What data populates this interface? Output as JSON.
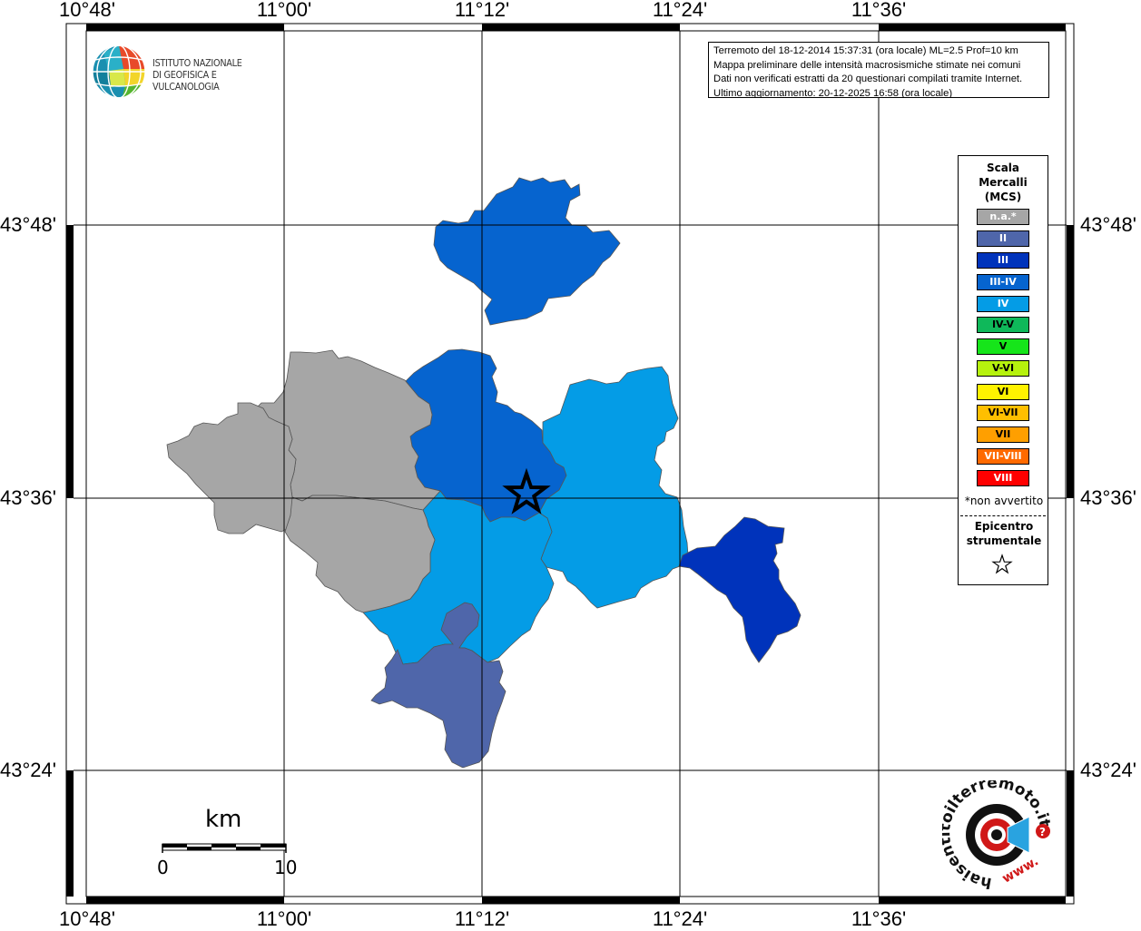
{
  "map": {
    "info_lines": [
      "Terremoto del 18-12-2014 15:37:31 (ora locale) ML=2.5 Prof=10 km",
      "Mappa preliminare delle intensità macrosismiche stimate nei comuni",
      "Dati non verificati estratti da 20 questionari compilati tramite Internet.",
      "Ultimo aggiornamento: 20-12-2025 16:58 (ora locale)"
    ],
    "longitude_ticks": [
      "10°48'",
      "11°00'",
      "11°12'",
      "11°24'",
      "11°36'"
    ],
    "latitude_ticks": [
      "43°48'",
      "43°36'",
      "43°24'"
    ],
    "logo_ingv": {
      "line1": "ISTITUTO NAZIONALE",
      "line2": "DI GEOFISICA E VULCANOLOGIA"
    },
    "logo_haisentito": {
      "text": "haisentitoilterremoto.it",
      "url_text": "www."
    },
    "scalebar": {
      "unit": "km",
      "min_label": "0",
      "max_label": "10"
    },
    "legend": {
      "title_lines": [
        "Scala",
        "Mercalli",
        "(MCS)"
      ],
      "classes": [
        {
          "label": "n.a.*",
          "color": "#a6a6a6"
        },
        {
          "label": "II",
          "color": "#4f66aa"
        },
        {
          "label": "III",
          "color": "#0033bb"
        },
        {
          "label": "III-IV",
          "color": "#0664cf"
        },
        {
          "label": "IV",
          "color": "#049ce6"
        },
        {
          "label": "IV-V",
          "color": "#0fb85a"
        },
        {
          "label": "V",
          "color": "#16e51a"
        },
        {
          "label": "V-VI",
          "color": "#b6f20e"
        },
        {
          "label": "VI",
          "color": "#fff200"
        },
        {
          "label": "VI-VII",
          "color": "#ffbf00"
        },
        {
          "label": "VII",
          "color": "#ff9f00"
        },
        {
          "label": "VII-VIII",
          "color": "#ff6a00"
        },
        {
          "label": "VIII",
          "color": "#ff0000"
        }
      ],
      "note": "*non avvertito",
      "epicenter_lines": [
        "Epicentro",
        "strumentale"
      ]
    },
    "municipalities": [
      {
        "intensity": "III-IV",
        "color": "#0664cf"
      },
      {
        "intensity": "III-IV",
        "color": "#0664cf"
      },
      {
        "intensity": "IV",
        "color": "#049ce6"
      },
      {
        "intensity": "IV",
        "color": "#049ce6"
      },
      {
        "intensity": "III",
        "color": "#0033bb"
      },
      {
        "intensity": "II",
        "color": "#4f66aa"
      },
      {
        "intensity": "n.a.*",
        "color": "#a6a6a6"
      },
      {
        "intensity": "n.a.*",
        "color": "#a6a6a6"
      },
      {
        "intensity": "n.a.*",
        "color": "#a6a6a6"
      }
    ]
  }
}
